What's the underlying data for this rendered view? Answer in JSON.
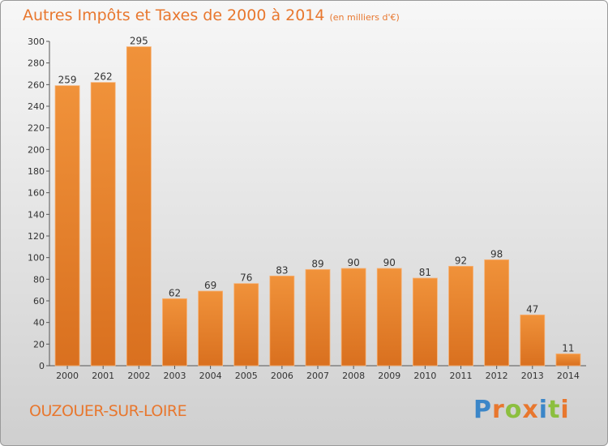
{
  "chart_data": {
    "type": "bar",
    "title": "Autres Impôts et Taxes de 2000 à 2014",
    "subtitle": "(en milliers d'€)",
    "categories": [
      "2000",
      "2001",
      "2002",
      "2003",
      "2004",
      "2005",
      "2006",
      "2007",
      "2008",
      "2009",
      "2010",
      "2011",
      "2012",
      "2013",
      "2014"
    ],
    "values": [
      259,
      262,
      295,
      62,
      69,
      76,
      83,
      89,
      90,
      90,
      81,
      92,
      98,
      47,
      11
    ],
    "ylim": [
      0,
      300
    ],
    "yticks": [
      0,
      20,
      40,
      60,
      80,
      100,
      120,
      140,
      160,
      180,
      200,
      220,
      240,
      260,
      280,
      300
    ],
    "grid": false,
    "bar_color": "#f0923a",
    "bar_color_dark": "#d9701f"
  },
  "commune": "OUZOUER-SUR-LOIRE",
  "brand": {
    "letters": [
      "P",
      "r",
      "o",
      "x",
      "i",
      "t",
      "i"
    ],
    "colors": [
      "#3b86c8",
      "#e8772e",
      "#8cbf3f",
      "#e8772e",
      "#3b86c8",
      "#8cbf3f",
      "#e8772e"
    ]
  }
}
